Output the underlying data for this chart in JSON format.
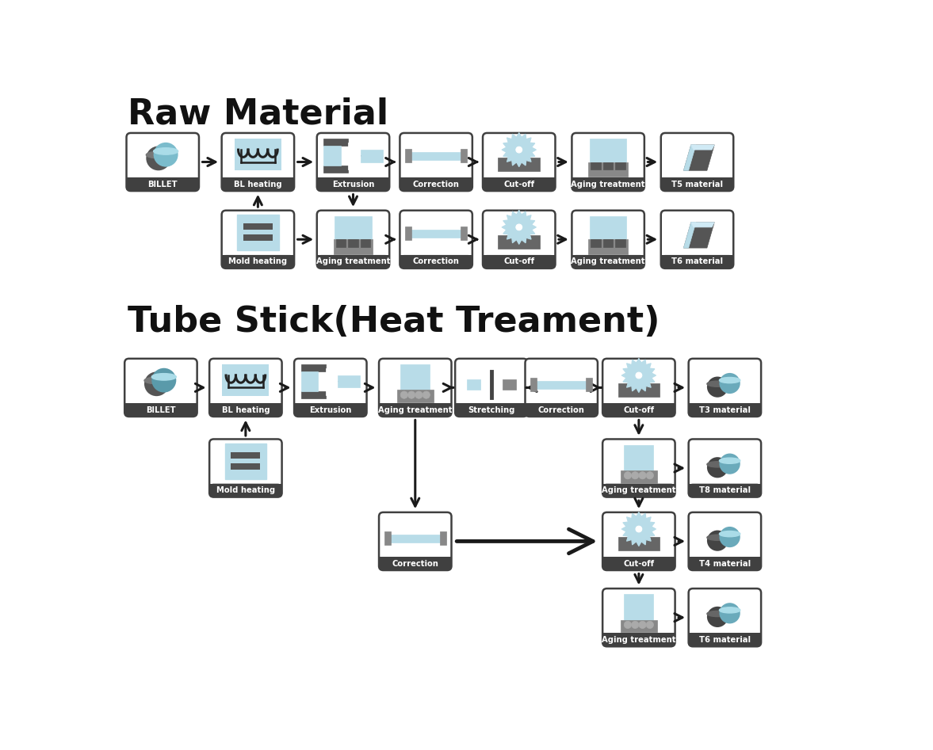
{
  "title1": "Raw Material",
  "title2": "Tube Stick(Heat Treament)",
  "bg_color": "#ffffff",
  "box_bg": "#ffffff",
  "box_border": "#404040",
  "label_bg": "#404040",
  "label_fg": "#ffffff",
  "title_color": "#111111",
  "arrow_color": "#1a1a1a",
  "row1_labels": [
    "BILLET",
    "BL heating",
    "Extrusion",
    "Correction",
    "Cut-off",
    "Aging treatment",
    "T5 material"
  ],
  "row2_labels": [
    "Mold heating",
    "Aging treatment",
    "Correction",
    "Cut-off",
    "Aging treatment",
    "T6 material"
  ],
  "tube_row1_labels": [
    "BILLET",
    "BL heating",
    "Extrusion",
    "Aging treatment",
    "Stretching",
    "Correction",
    "Cut-off",
    "T3 material"
  ],
  "tube_mold_label": "Mold heating",
  "tube_correction_label": "Correction",
  "tube_branch1": [
    "Aging treatment",
    "T8 material"
  ],
  "tube_branch2": [
    "Cut-off",
    "T4 material"
  ],
  "tube_branch3": [
    "Aging treatment",
    "T6 material"
  ]
}
